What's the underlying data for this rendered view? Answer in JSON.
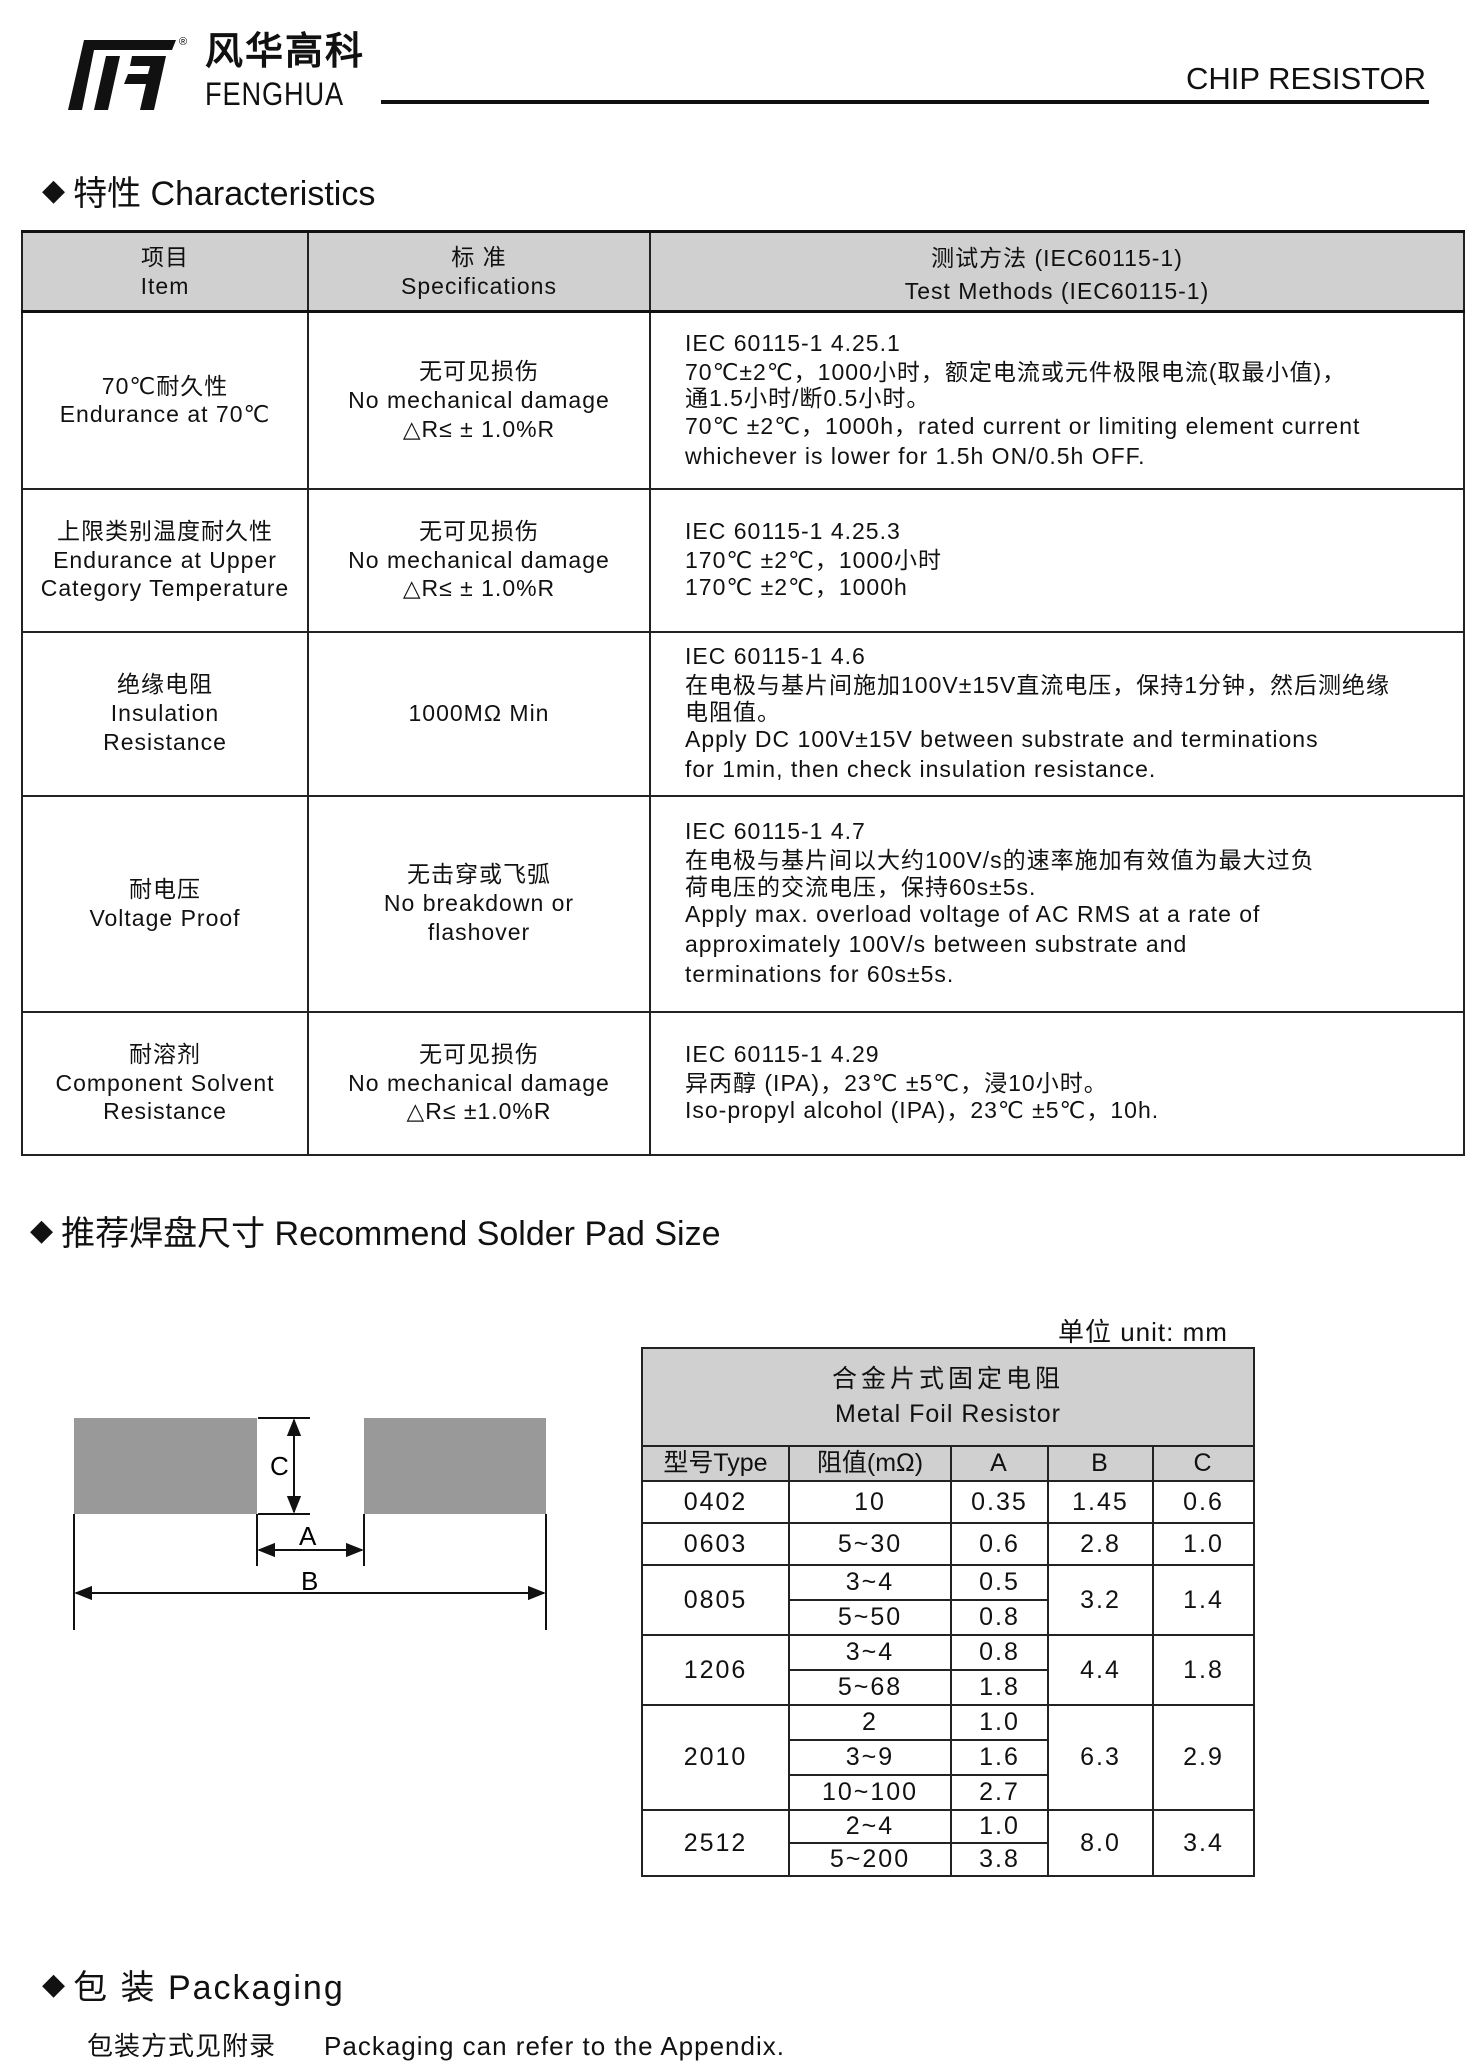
{
  "header": {
    "logo_cn": "风华高科",
    "logo_en": "FENGHUA",
    "logo_mark": "®",
    "doc_title": "CHIP RESISTOR"
  },
  "characteristics": {
    "heading": "特性 Characteristics",
    "columns": [
      {
        "cn": "项目",
        "en": "Item"
      },
      {
        "cn": "标 准",
        "en": "Specifications"
      },
      {
        "cn": "测试方法 (IEC60115-1)",
        "en": "Test Methods  (IEC60115-1)"
      }
    ],
    "rows": [
      {
        "item": [
          "70℃耐久性",
          "Endurance at 70℃"
        ],
        "spec": [
          "无可见损伤",
          "No mechanical damage",
          "△R≤ ± 1.0%R"
        ],
        "method": [
          "IEC 60115-1 4.25.1",
          "70℃±2℃，1000小时，额定电流或元件极限电流(取最小值)，",
          "通1.5小时/断0.5小时。",
          "70℃ ±2℃，1000h，rated current or limiting element current",
          "whichever is lower for 1.5h ON/0.5h OFF."
        ]
      },
      {
        "item": [
          "上限类别温度耐久性",
          "Endurance at Upper",
          "Category Temperature"
        ],
        "spec": [
          "无可见损伤",
          "No mechanical damage",
          "△R≤ ± 1.0%R"
        ],
        "method": [
          "IEC 60115-1 4.25.3",
          "170℃ ±2℃，1000小时",
          "170℃ ±2℃，1000h"
        ]
      },
      {
        "item": [
          "绝缘电阻",
          "Insulation",
          "Resistance"
        ],
        "spec": [
          "1000MΩ  Min"
        ],
        "method": [
          "IEC 60115-1 4.6",
          "在电极与基片间施加100V±15V直流电压，保持1分钟，然后测绝缘",
          "电阻值。",
          "Apply DC 100V±15V between substrate and terminations",
          "for 1min, then check insulation resistance."
        ]
      },
      {
        "item": [
          "耐电压",
          "Voltage Proof"
        ],
        "spec": [
          "无击穿或飞弧",
          "No breakdown or",
          "flashover"
        ],
        "method": [
          "IEC 60115-1 4.7",
          "在电极与基片间以大约100V/s的速率施加有效值为最大过负",
          "荷电压的交流电压，保持60s±5s.",
          "Apply max. overload voltage of AC RMS at a rate of",
          "approximately 100V/s between substrate and",
          "terminations for 60s±5s."
        ]
      },
      {
        "item": [
          "耐溶剂",
          "Component  Solvent",
          "Resistance"
        ],
        "spec": [
          "无可见损伤",
          "No mechanical damage",
          "△R≤ ±1.0%R"
        ],
        "method": [
          "IEC 60115-1 4.29",
          "异丙醇 (IPA)，23℃ ±5℃，浸10小时。",
          "Iso-propyl alcohol (IPA)，23℃ ±5℃，10h."
        ]
      }
    ]
  },
  "solder_pad": {
    "heading": "推荐焊盘尺寸 Recommend Solder Pad Size",
    "diagram_labels": {
      "a": "A",
      "b": "B",
      "c": "C"
    },
    "unit": "单位  unit: mm",
    "table_title_cn": "合金片式固定电阻",
    "table_title_en": "Metal Foil Resistor",
    "columns": [
      "型号Type",
      "阻值(mΩ)",
      "A",
      "B",
      "C"
    ],
    "rows": [
      {
        "type": "0402",
        "ranges": [
          {
            "r": "10",
            "a": "0.35"
          }
        ],
        "b": "1.45",
        "c": "0.6"
      },
      {
        "type": "0603",
        "ranges": [
          {
            "r": "5~30",
            "a": "0.6"
          }
        ],
        "b": "2.8",
        "c": "1.0"
      },
      {
        "type": "0805",
        "ranges": [
          {
            "r": "3~4",
            "a": "0.5"
          },
          {
            "r": "5~50",
            "a": "0.8"
          }
        ],
        "b": "3.2",
        "c": "1.4"
      },
      {
        "type": "1206",
        "ranges": [
          {
            "r": "3~4",
            "a": "0.8"
          },
          {
            "r": "5~68",
            "a": "1.8"
          }
        ],
        "b": "4.4",
        "c": "1.8"
      },
      {
        "type": "2010",
        "ranges": [
          {
            "r": "2",
            "a": "1.0"
          },
          {
            "r": "3~9",
            "a": "1.6"
          },
          {
            "r": "10~100",
            "a": "2.7"
          }
        ],
        "b": "6.3",
        "c": "2.9"
      },
      {
        "type": "2512",
        "ranges": [
          {
            "r": "2~4",
            "a": "1.0"
          },
          {
            "r": "5~200",
            "a": "3.8"
          }
        ],
        "b": "8.0",
        "c": "3.4"
      }
    ],
    "pad_color": "#999999",
    "header_bg": "#d0d0d0"
  },
  "packaging": {
    "heading": "包 装  Packaging",
    "text_cn": "包装方式见附录",
    "text_en": "Packaging can refer to the Appendix."
  }
}
